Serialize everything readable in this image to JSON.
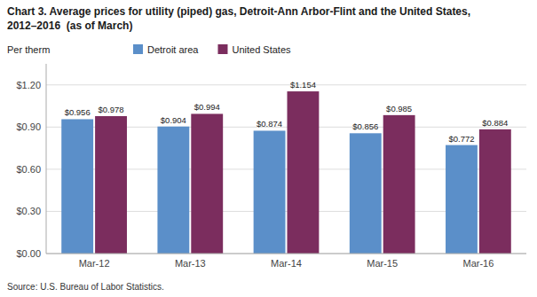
{
  "chart_data": {
    "type": "bar",
    "title": "Chart 3. Average prices for utility (piped) gas, Detroit-Ann Arbor-Flint and the United States,",
    "subtitle": "2012–2016  (as of March)",
    "ylabel": "Per therm",
    "source": "Source: U.S. Bureau of Labor Statistics.",
    "categories": [
      "Mar-12",
      "Mar-13",
      "Mar-14",
      "Mar-15",
      "Mar-16"
    ],
    "series": [
      {
        "name": "Detroit area",
        "color": "#5b8fc9",
        "values": [
          0.956,
          0.904,
          0.874,
          0.856,
          0.772
        ],
        "value_labels": [
          "$0.956",
          "$0.904",
          "$0.874",
          "$0.856",
          "$0.772"
        ]
      },
      {
        "name": "United States",
        "color": "#7b2d5e",
        "values": [
          0.978,
          0.994,
          1.154,
          0.985,
          0.884
        ],
        "value_labels": [
          "$0.978",
          "$0.994",
          "$1.154",
          "$0.985",
          "$0.884"
        ]
      }
    ],
    "ylim": [
      0,
      1.35
    ],
    "yticks": [
      {
        "value": 0.0,
        "label": "$0.00"
      },
      {
        "value": 0.3,
        "label": "$0.30"
      },
      {
        "value": 0.6,
        "label": "$0.60"
      },
      {
        "value": 0.9,
        "label": "$0.90"
      },
      {
        "value": 1.2,
        "label": "$1.20"
      }
    ],
    "grid": true,
    "legend": "top",
    "data_labels": true
  }
}
